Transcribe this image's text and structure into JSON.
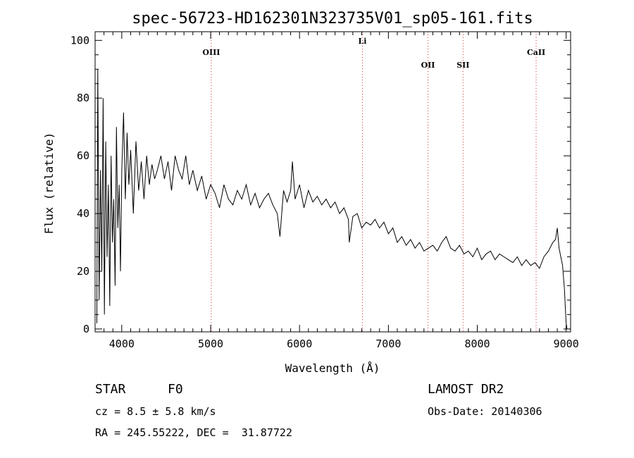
{
  "chart_data": {
    "type": "line",
    "title": "spec-56723-HD162301N323735V01_sp05-161.fits",
    "xlabel": "Wavelength (Å)",
    "ylabel": "Flux (relative)",
    "xlim": [
      3700,
      9050
    ],
    "ylim": [
      -1,
      103
    ],
    "xticks": [
      4000,
      5000,
      6000,
      7000,
      8000,
      9000
    ],
    "xtick_labels": [
      "4000",
      "5000",
      "6000",
      "7000",
      "8000",
      "9000"
    ],
    "yticks": [
      0,
      20,
      40,
      60,
      80,
      100
    ],
    "ytick_labels": [
      "0",
      "20",
      "40",
      "60",
      "80",
      "100"
    ],
    "grid": false,
    "series": [
      {
        "x": [
          3720,
          3730,
          3745,
          3760,
          3775,
          3790,
          3805,
          3820,
          3835,
          3850,
          3865,
          3880,
          3895,
          3910,
          3925,
          3940,
          3955,
          3970,
          3985,
          4000,
          4020,
          4040,
          4060,
          4080,
          4100,
          4130,
          4160,
          4190,
          4220,
          4250,
          4280,
          4310,
          4340,
          4370,
          4400,
          4440,
          4480,
          4520,
          4560,
          4600,
          4640,
          4680,
          4720,
          4760,
          4800,
          4850,
          4900,
          4950,
          5000,
          5050,
          5100,
          5150,
          5200,
          5250,
          5300,
          5350,
          5400,
          5450,
          5500,
          5550,
          5600,
          5650,
          5700,
          5750,
          5780,
          5820,
          5860,
          5900,
          5920,
          5950,
          6000,
          6050,
          6100,
          6150,
          6200,
          6250,
          6300,
          6350,
          6400,
          6450,
          6500,
          6550,
          6560,
          6600,
          6650,
          6700,
          6750,
          6800,
          6850,
          6900,
          6950,
          7000,
          7050,
          7100,
          7150,
          7200,
          7250,
          7300,
          7350,
          7400,
          7450,
          7500,
          7550,
          7600,
          7650,
          7700,
          7750,
          7800,
          7850,
          7900,
          7950,
          8000,
          8050,
          8100,
          8150,
          8200,
          8250,
          8300,
          8350,
          8400,
          8450,
          8500,
          8550,
          8600,
          8650,
          8700,
          8750,
          8800,
          8850,
          8880,
          8900,
          8920,
          8940,
          8960,
          8970,
          8980,
          8990,
          9000,
          9010
        ],
        "y": [
          2,
          90,
          10,
          55,
          20,
          80,
          5,
          65,
          25,
          50,
          8,
          60,
          30,
          45,
          15,
          70,
          35,
          50,
          20,
          55,
          75,
          45,
          68,
          50,
          62,
          40,
          65,
          48,
          58,
          45,
          60,
          50,
          57,
          52,
          55,
          60,
          52,
          58,
          48,
          60,
          55,
          52,
          60,
          50,
          55,
          48,
          53,
          45,
          50,
          47,
          42,
          50,
          45,
          43,
          48,
          45,
          50,
          43,
          47,
          42,
          45,
          47,
          43,
          40,
          32,
          48,
          44,
          48,
          58,
          45,
          50,
          42,
          48,
          44,
          46,
          43,
          45,
          42,
          44,
          40,
          42,
          38,
          30,
          39,
          40,
          35,
          37,
          36,
          38,
          35,
          37,
          33,
          35,
          30,
          32,
          29,
          31,
          28,
          30,
          27,
          28,
          29,
          27,
          30,
          32,
          28,
          27,
          29,
          26,
          27,
          25,
          28,
          24,
          26,
          27,
          24,
          26,
          25,
          24,
          23,
          25,
          22,
          24,
          22,
          23,
          21,
          25,
          27,
          30,
          31,
          35,
          28,
          25,
          22,
          18,
          14,
          8,
          2,
          0
        ]
      }
    ],
    "annotations": [
      {
        "label": "OIII",
        "x": 5007
      },
      {
        "label": "Li",
        "x": 6708
      },
      {
        "label": "OII",
        "x": 7445
      },
      {
        "label": "SII",
        "x": 7840
      },
      {
        "label": "CaII",
        "x": 8662
      }
    ]
  },
  "info": {
    "object_type": "STAR",
    "subclass": "F0",
    "survey": "LAMOST DR2",
    "cz": "cz = 8.5 ± 5.8 km/s",
    "obs_date": "Obs-Date: 20140306",
    "coords": "RA = 245.55222, DEC =  31.87722"
  },
  "colors": {
    "spectrum": "#000000",
    "line_marker": "#cc3333",
    "axes": "#000000"
  }
}
